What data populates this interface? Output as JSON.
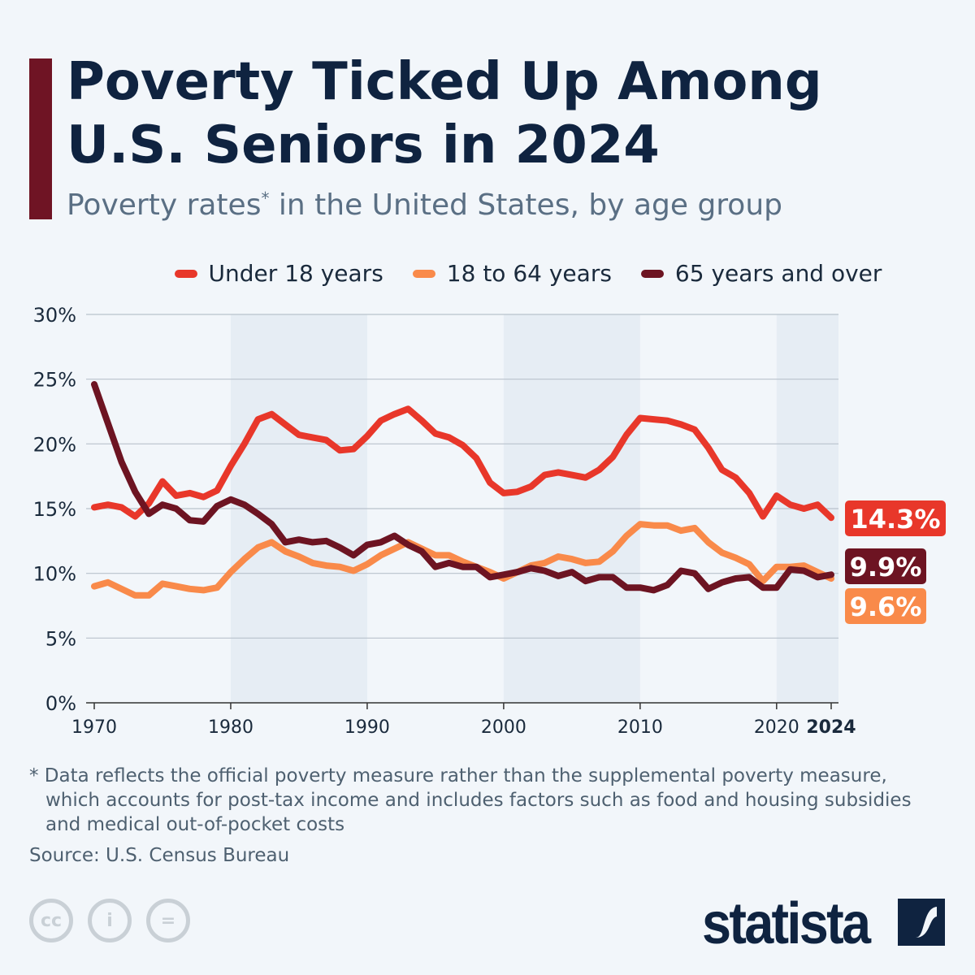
{
  "header": {
    "title": "Poverty Ticked Up Among U.S. Seniors in 2024",
    "subtitle": "Poverty rates",
    "subtitle_mark": "*",
    "subtitle_rest": " in the United States, by age group"
  },
  "footer": {
    "note_line1": "* Data reflects the official poverty measure rather than the supplemental poverty measure,",
    "note_line2": "which accounts for post-tax income and includes factors such as food and housing subsidies",
    "note_line3": "and medical out-of-pocket costs",
    "source": "Source: U.S. Census Bureau",
    "brand": "statista",
    "license_icons": [
      "cc-icon",
      "by-icon",
      "nd-icon"
    ]
  },
  "colors": {
    "accent": "#6f1424",
    "title": "#0f2340",
    "under18": "#e8372a",
    "age18to64": "#f98a4a",
    "age65plus": "#6d1422"
  },
  "chart_data": {
    "type": "line",
    "x_range": [
      1970,
      2024
    ],
    "ylim": [
      0,
      30
    ],
    "y_ticks": [
      "0%",
      "5%",
      "10%",
      "15%",
      "20%",
      "25%",
      "30%"
    ],
    "y_tick_values": [
      0,
      5,
      10,
      15,
      20,
      25,
      30
    ],
    "x_ticks": [
      "1970",
      "1980",
      "1990",
      "2000",
      "2010",
      "2020",
      "2024"
    ],
    "x_tick_values": [
      1970,
      1980,
      1990,
      2000,
      2010,
      2020,
      2024
    ],
    "shaded_decades": [
      [
        1980,
        1990
      ],
      [
        2000,
        2010
      ],
      [
        2020,
        2024
      ]
    ],
    "grid": true,
    "legend_placement": "top",
    "end_labels": [
      "14.3%",
      "9.9%",
      "9.6%"
    ],
    "series": [
      {
        "name": "Under 18 years",
        "color": "#e8372a",
        "values": [
          15.1,
          15.3,
          15.1,
          14.4,
          15.4,
          17.1,
          16.0,
          16.2,
          15.9,
          16.4,
          18.3,
          20.0,
          21.9,
          22.3,
          21.5,
          20.7,
          20.5,
          20.3,
          19.5,
          19.6,
          20.6,
          21.8,
          22.3,
          22.7,
          21.8,
          20.8,
          20.5,
          19.9,
          18.9,
          17.0,
          16.2,
          16.3,
          16.7,
          17.6,
          17.8,
          17.6,
          17.4,
          18.0,
          19.0,
          20.7,
          22.0,
          21.9,
          21.8,
          21.5,
          21.1,
          19.7,
          18.0,
          17.4,
          16.2,
          14.4,
          16.0,
          15.3,
          15.0,
          15.3,
          14.3
        ]
      },
      {
        "name": "18 to 64 years",
        "color": "#f98a4a",
        "values": [
          9.0,
          9.3,
          8.8,
          8.3,
          8.3,
          9.2,
          9.0,
          8.8,
          8.7,
          8.9,
          10.1,
          11.1,
          12.0,
          12.4,
          11.7,
          11.3,
          10.8,
          10.6,
          10.5,
          10.2,
          10.7,
          11.4,
          11.9,
          12.4,
          11.9,
          11.4,
          11.4,
          10.9,
          10.5,
          10.1,
          9.6,
          10.1,
          10.6,
          10.8,
          11.3,
          11.1,
          10.8,
          10.9,
          11.7,
          12.9,
          13.8,
          13.7,
          13.7,
          13.3,
          13.5,
          12.4,
          11.6,
          11.2,
          10.7,
          9.4,
          10.5,
          10.5,
          10.6,
          10.1,
          9.6
        ]
      },
      {
        "name": "65 years and over",
        "color": "#6d1422",
        "values": [
          24.6,
          21.6,
          18.6,
          16.3,
          14.6,
          15.3,
          15.0,
          14.1,
          14.0,
          15.2,
          15.7,
          15.3,
          14.6,
          13.8,
          12.4,
          12.6,
          12.4,
          12.5,
          12.0,
          11.4,
          12.2,
          12.4,
          12.9,
          12.2,
          11.7,
          10.5,
          10.8,
          10.5,
          10.5,
          9.7,
          9.9,
          10.1,
          10.4,
          10.2,
          9.8,
          10.1,
          9.4,
          9.7,
          9.7,
          8.9,
          8.9,
          8.7,
          9.1,
          10.2,
          10.0,
          8.8,
          9.3,
          9.6,
          9.7,
          8.9,
          8.9,
          10.3,
          10.2,
          9.7,
          9.9
        ]
      }
    ]
  }
}
